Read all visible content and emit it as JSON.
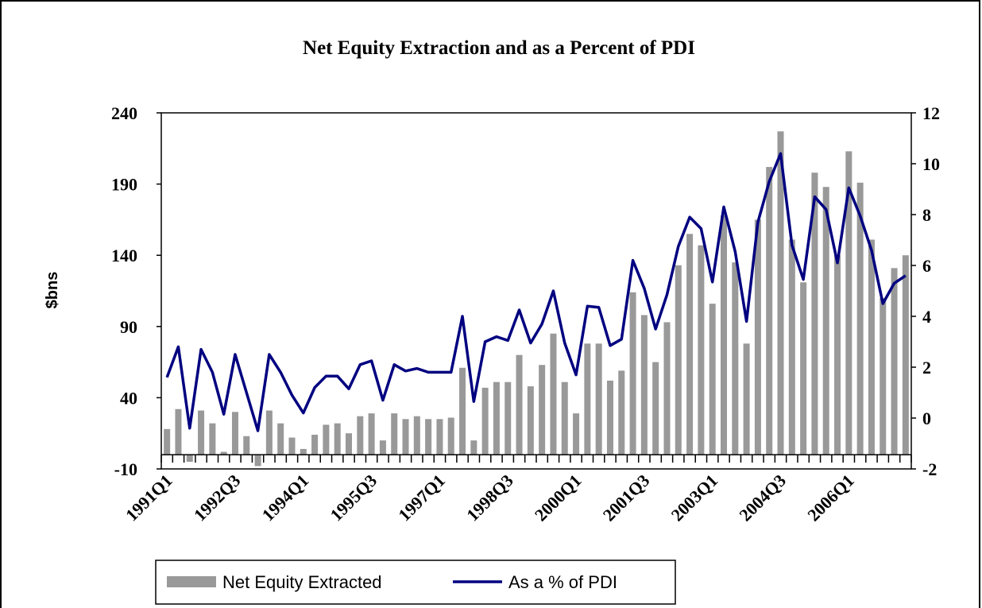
{
  "chart_data": {
    "type": "bar_line",
    "title": "Net Equity Extraction and as a Percent of PDI",
    "y_label": "$bns",
    "categories": [
      "1991Q1",
      null,
      null,
      null,
      null,
      null,
      "1992Q3",
      null,
      null,
      null,
      null,
      null,
      "1994Q1",
      null,
      null,
      null,
      null,
      null,
      "1995Q3",
      null,
      null,
      null,
      null,
      null,
      "1997Q1",
      null,
      null,
      null,
      null,
      null,
      "1998Q3",
      null,
      null,
      null,
      null,
      null,
      "2000Q1",
      null,
      null,
      null,
      null,
      null,
      "2001Q3",
      null,
      null,
      null,
      null,
      null,
      "2003Q1",
      null,
      null,
      null,
      null,
      null,
      "2004Q3",
      null,
      null,
      null,
      null,
      null,
      "2006Q1",
      null,
      null,
      null,
      null,
      null
    ],
    "series": [
      {
        "name": "Net Equity Extracted",
        "type": "bar",
        "color": "#999999",
        "axis": "y",
        "values": [
          18,
          32,
          -5,
          31,
          22,
          2,
          30,
          13,
          -8,
          31,
          22,
          12,
          4,
          14,
          21,
          22,
          15,
          27,
          29,
          10,
          29,
          25,
          27,
          25,
          25,
          26,
          61,
          10,
          47,
          51,
          51,
          70,
          48,
          63,
          85,
          51,
          29,
          78,
          78,
          52,
          59,
          114,
          98,
          65,
          93,
          133,
          155,
          147,
          106,
          168,
          135,
          78,
          165,
          202,
          227,
          151,
          121,
          198,
          188,
          140,
          213,
          191,
          151,
          110,
          131,
          140
        ]
      },
      {
        "name": "As a % of PDI",
        "type": "line",
        "color": "#000080",
        "axis": "y2",
        "values": [
          1.6,
          2.8,
          -0.4,
          2.7,
          1.8,
          0.15,
          2.5,
          1.0,
          -0.5,
          2.5,
          1.8,
          0.9,
          0.2,
          1.2,
          1.65,
          1.65,
          1.15,
          2.1,
          2.25,
          0.7,
          2.1,
          1.85,
          1.95,
          1.8,
          1.8,
          1.8,
          4.0,
          0.65,
          3.0,
          3.2,
          3.05,
          4.25,
          2.95,
          3.7,
          5.0,
          2.95,
          1.7,
          4.4,
          4.35,
          2.85,
          3.1,
          6.2,
          5.1,
          3.5,
          4.85,
          6.75,
          7.9,
          7.45,
          5.35,
          8.3,
          6.55,
          3.8,
          7.7,
          9.3,
          10.4,
          6.8,
          5.45,
          8.7,
          8.2,
          6.1,
          9.05,
          7.95,
          6.6,
          4.5,
          5.3,
          5.6
        ]
      }
    ],
    "ylim": [
      -10,
      240
    ],
    "yticks": [
      -10,
      40,
      90,
      140,
      190,
      240
    ],
    "y2lim": [
      -2,
      12
    ],
    "y2ticks": [
      -2,
      0,
      2,
      4,
      6,
      8,
      10,
      12
    ],
    "legend": "bottom"
  }
}
